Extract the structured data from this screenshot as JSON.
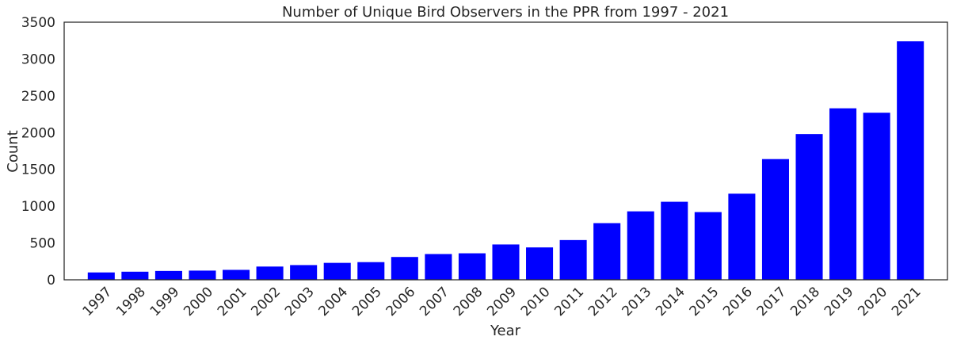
{
  "chart_data": {
    "type": "bar",
    "title": "Number of Unique Bird Observers in the PPR from 1997 - 2021",
    "xlabel": "Year",
    "ylabel": "Count",
    "ylim": [
      0,
      3500
    ],
    "yticks": [
      0,
      500,
      1000,
      1500,
      2000,
      2500,
      3000,
      3500
    ],
    "grid": false,
    "bar_color": "#0000ff",
    "categories": [
      "1997",
      "1998",
      "1999",
      "2000",
      "2001",
      "2002",
      "2003",
      "2004",
      "2005",
      "2006",
      "2007",
      "2008",
      "2009",
      "2010",
      "2011",
      "2012",
      "2013",
      "2014",
      "2015",
      "2016",
      "2017",
      "2018",
      "2019",
      "2020",
      "2021"
    ],
    "values": [
      100,
      110,
      120,
      125,
      135,
      180,
      200,
      230,
      240,
      310,
      350,
      360,
      480,
      440,
      540,
      770,
      930,
      1060,
      920,
      1170,
      1640,
      1980,
      2330,
      2270,
      3240
    ]
  }
}
